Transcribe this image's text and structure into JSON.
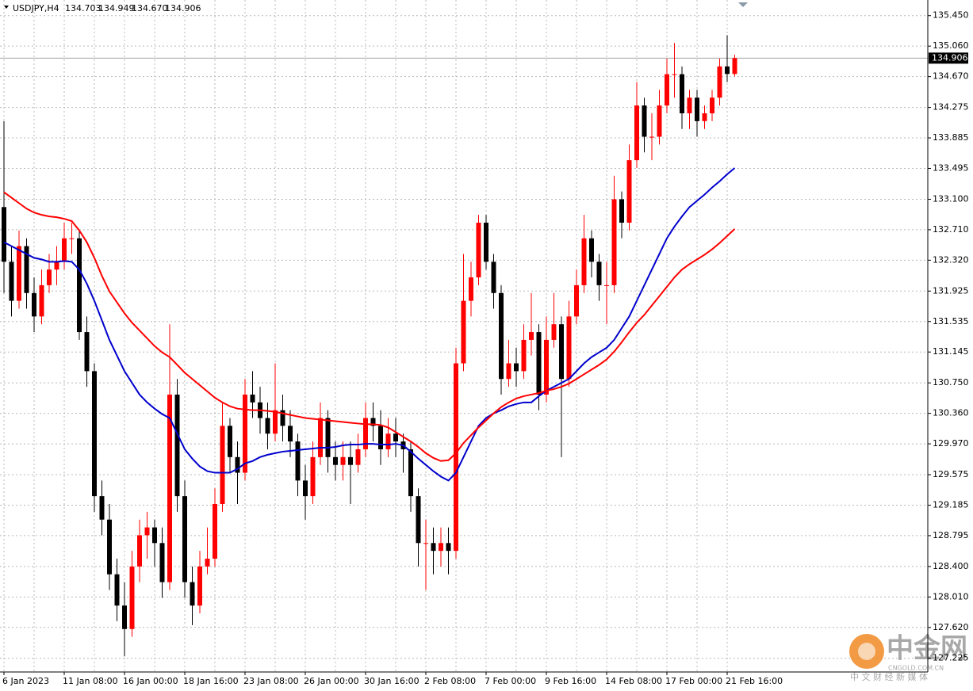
{
  "chart_data": {
    "type": "candlestick",
    "symbol": "USDJPY,H4",
    "quote_labels": [
      "134.703",
      "134.949",
      "134.670",
      "134.906"
    ],
    "categories": [
      "6 Jan 2023",
      null,
      null,
      null,
      null,
      null,
      null,
      null,
      "11 Jan 08:00",
      null,
      null,
      null,
      null,
      null,
      null,
      null,
      "16 Jan 00:00",
      null,
      null,
      null,
      null,
      null,
      null,
      null,
      "18 Jan 16:00",
      null,
      null,
      null,
      null,
      null,
      null,
      null,
      "23 Jan 08:00",
      null,
      null,
      null,
      null,
      null,
      null,
      null,
      "26 Jan 00:00",
      null,
      null,
      null,
      null,
      null,
      null,
      null,
      "30 Jan 16:00",
      null,
      null,
      null,
      null,
      null,
      null,
      null,
      "2 Feb 08:00",
      null,
      null,
      null,
      null,
      null,
      null,
      null,
      "7 Feb 00:00",
      null,
      null,
      null,
      null,
      null,
      null,
      null,
      "9 Feb 16:00",
      null,
      null,
      null,
      null,
      null,
      null,
      null,
      "14 Feb 08:00",
      null,
      null,
      null,
      null,
      null,
      null,
      null,
      "17 Feb 00:00",
      null,
      null,
      null,
      null,
      null,
      null,
      null,
      "21 Feb 16:00",
      null
    ],
    "ohlc": [
      [
        133.0,
        134.1,
        131.9,
        132.3
      ],
      [
        132.3,
        132.5,
        131.6,
        131.8
      ],
      [
        131.8,
        132.7,
        131.7,
        132.5
      ],
      [
        132.5,
        132.6,
        131.7,
        131.9
      ],
      [
        131.9,
        132.1,
        131.4,
        131.6
      ],
      [
        131.6,
        132.2,
        131.5,
        132.0
      ],
      [
        132.0,
        132.4,
        131.9,
        132.2
      ],
      [
        132.2,
        132.5,
        132.0,
        132.3
      ],
      [
        132.3,
        132.8,
        132.2,
        132.6
      ],
      [
        132.6,
        132.8,
        132.4,
        132.6
      ],
      [
        132.6,
        132.7,
        131.3,
        131.4
      ],
      [
        131.4,
        131.6,
        130.7,
        130.9
      ],
      [
        130.9,
        131.0,
        129.1,
        129.3
      ],
      [
        129.3,
        129.5,
        128.8,
        129.0
      ],
      [
        129.0,
        129.2,
        128.1,
        128.3
      ],
      [
        128.3,
        128.5,
        127.7,
        127.9
      ],
      [
        127.9,
        128.2,
        127.25,
        127.6
      ],
      [
        127.6,
        128.6,
        127.5,
        128.4
      ],
      [
        128.4,
        129.0,
        128.2,
        128.8
      ],
      [
        128.8,
        129.1,
        128.5,
        128.9
      ],
      [
        128.9,
        129.0,
        128.4,
        128.7
      ],
      [
        128.7,
        128.9,
        128.0,
        128.2
      ],
      [
        128.2,
        131.5,
        128.1,
        130.6
      ],
      [
        130.6,
        130.8,
        129.1,
        129.3
      ],
      [
        129.3,
        129.5,
        128.0,
        128.2
      ],
      [
        128.2,
        128.4,
        127.65,
        127.9
      ],
      [
        127.9,
        128.6,
        127.8,
        128.4
      ],
      [
        128.4,
        128.9,
        128.3,
        128.5
      ],
      [
        128.5,
        129.4,
        128.4,
        129.2
      ],
      [
        129.2,
        130.5,
        129.1,
        130.2
      ],
      [
        130.2,
        130.3,
        129.6,
        129.8
      ],
      [
        129.8,
        130.0,
        129.2,
        129.6
      ],
      [
        129.6,
        130.8,
        129.5,
        130.6
      ],
      [
        130.6,
        130.9,
        130.3,
        130.5
      ],
      [
        130.5,
        130.7,
        130.1,
        130.3
      ],
      [
        130.3,
        130.5,
        129.9,
        130.1
      ],
      [
        130.1,
        131.0,
        130.0,
        130.4
      ],
      [
        130.4,
        130.6,
        130.0,
        130.2
      ],
      [
        130.2,
        130.4,
        129.8,
        130.0
      ],
      [
        130.0,
        130.1,
        129.3,
        129.5
      ],
      [
        129.5,
        129.7,
        129.0,
        129.3
      ],
      [
        129.3,
        130.0,
        129.2,
        129.8
      ],
      [
        129.8,
        130.5,
        129.7,
        130.3
      ],
      [
        130.3,
        130.4,
        129.6,
        129.8
      ],
      [
        129.8,
        130.0,
        129.5,
        129.7
      ],
      [
        129.7,
        130.0,
        129.5,
        129.8
      ],
      [
        129.8,
        130.0,
        129.2,
        129.7
      ],
      [
        129.7,
        130.1,
        129.6,
        129.9
      ],
      [
        129.9,
        130.5,
        129.8,
        130.3
      ],
      [
        130.3,
        130.5,
        130.0,
        130.2
      ],
      [
        130.2,
        130.4,
        129.7,
        129.9
      ],
      [
        129.9,
        130.3,
        129.8,
        130.1
      ],
      [
        130.1,
        130.3,
        129.8,
        130.0
      ],
      [
        130.0,
        130.1,
        129.6,
        129.9
      ],
      [
        129.9,
        130.0,
        129.1,
        129.3
      ],
      [
        129.3,
        129.4,
        128.4,
        128.7
      ],
      [
        128.7,
        129.0,
        128.1,
        128.7
      ],
      [
        128.7,
        128.9,
        128.3,
        128.6
      ],
      [
        128.6,
        128.9,
        128.4,
        128.7
      ],
      [
        128.7,
        128.9,
        128.3,
        128.6
      ],
      [
        128.6,
        131.2,
        128.5,
        131.0
      ],
      [
        131.0,
        132.4,
        130.9,
        131.8
      ],
      [
        131.8,
        132.3,
        131.6,
        132.1
      ],
      [
        132.1,
        132.9,
        132.0,
        132.8
      ],
      [
        132.8,
        132.9,
        132.2,
        132.3
      ],
      [
        132.3,
        132.4,
        131.7,
        131.9
      ],
      [
        131.9,
        132.0,
        130.6,
        130.8
      ],
      [
        130.8,
        131.3,
        130.7,
        131.0
      ],
      [
        131.0,
        131.2,
        130.7,
        130.9
      ],
      [
        130.9,
        131.5,
        130.8,
        131.3
      ],
      [
        131.3,
        131.9,
        131.1,
        131.4
      ],
      [
        131.4,
        131.5,
        130.4,
        130.6
      ],
      [
        130.6,
        131.6,
        130.5,
        131.3
      ],
      [
        131.3,
        131.9,
        131.2,
        131.5
      ],
      [
        131.5,
        131.6,
        129.8,
        130.8
      ],
      [
        130.8,
        131.8,
        130.7,
        131.6
      ],
      [
        131.6,
        132.2,
        131.5,
        132.0
      ],
      [
        132.0,
        132.9,
        131.9,
        132.6
      ],
      [
        132.6,
        132.7,
        132.1,
        132.3
      ],
      [
        132.3,
        132.4,
        131.8,
        132.0
      ],
      [
        132.0,
        132.3,
        131.5,
        132.0
      ],
      [
        132.0,
        133.4,
        131.9,
        133.1
      ],
      [
        133.1,
        133.2,
        132.6,
        132.8
      ],
      [
        132.8,
        133.8,
        132.7,
        133.6
      ],
      [
        133.6,
        134.6,
        133.5,
        134.3
      ],
      [
        134.3,
        134.4,
        133.7,
        133.9
      ],
      [
        133.9,
        134.2,
        133.6,
        133.9
      ],
      [
        133.9,
        134.5,
        133.8,
        134.3
      ],
      [
        134.3,
        134.9,
        134.2,
        134.7
      ],
      [
        134.7,
        135.1,
        134.4,
        134.7
      ],
      [
        134.7,
        134.8,
        134.0,
        134.2
      ],
      [
        134.2,
        134.5,
        134.0,
        134.4
      ],
      [
        134.4,
        134.5,
        133.9,
        134.1
      ],
      [
        134.1,
        134.3,
        134.0,
        134.2
      ],
      [
        134.2,
        134.5,
        134.1,
        134.4
      ],
      [
        134.4,
        134.9,
        134.3,
        134.8
      ],
      [
        134.8,
        135.2,
        134.6,
        134.703
      ],
      [
        134.703,
        134.949,
        134.67,
        134.906
      ]
    ],
    "up_color": "#ff0000",
    "down_color": "#000000",
    "moving_averages": [
      {
        "color": "#0000cd",
        "values": [
          132.55,
          132.5,
          132.45,
          132.4,
          132.35,
          132.33,
          132.3,
          132.3,
          132.31,
          132.3,
          132.2,
          132.02,
          131.8,
          131.55,
          131.3,
          131.1,
          130.9,
          130.75,
          130.6,
          130.5,
          130.42,
          130.35,
          130.3,
          130.1,
          129.9,
          129.78,
          129.68,
          129.62,
          129.6,
          129.6,
          129.6,
          129.65,
          129.72,
          129.75,
          129.8,
          129.83,
          129.85,
          129.87,
          129.88,
          129.89,
          129.9,
          129.91,
          129.92,
          129.92,
          129.93,
          129.95,
          129.96,
          129.96,
          129.97,
          129.97,
          129.96,
          129.96,
          129.97,
          129.95,
          129.87,
          129.78,
          129.7,
          129.62,
          129.55,
          129.5,
          129.6,
          129.8,
          130.0,
          130.2,
          130.3,
          130.36,
          130.4,
          130.45,
          130.48,
          130.5,
          130.5,
          130.58,
          130.65,
          130.7,
          130.75,
          130.8,
          130.9,
          131.0,
          131.08,
          131.14,
          131.2,
          131.3,
          131.45,
          131.6,
          131.8,
          132.0,
          132.2,
          132.4,
          132.6,
          132.75,
          132.88,
          133.0,
          133.08,
          133.16,
          133.25,
          133.33,
          133.42,
          133.5
        ]
      },
      {
        "color": "#ff0000",
        "values": [
          133.19,
          133.12,
          133.05,
          132.98,
          132.93,
          132.9,
          132.88,
          132.87,
          132.85,
          132.82,
          132.7,
          132.55,
          132.35,
          132.12,
          131.92,
          131.78,
          131.64,
          131.52,
          131.42,
          131.32,
          131.22,
          131.14,
          131.08,
          130.98,
          130.88,
          130.8,
          130.72,
          130.64,
          130.56,
          130.5,
          130.45,
          130.42,
          130.41,
          130.4,
          130.4,
          130.39,
          130.38,
          130.36,
          130.34,
          130.32,
          130.3,
          130.29,
          130.28,
          130.27,
          130.26,
          130.25,
          130.24,
          130.23,
          130.22,
          130.22,
          130.21,
          130.18,
          130.12,
          130.06,
          130.0,
          129.93,
          129.85,
          129.79,
          129.75,
          129.76,
          129.85,
          129.98,
          130.08,
          130.18,
          130.27,
          130.36,
          130.44,
          130.5,
          130.55,
          130.58,
          130.6,
          130.62,
          130.65,
          130.67,
          130.7,
          130.74,
          130.8,
          130.86,
          130.92,
          130.98,
          131.05,
          131.15,
          131.27,
          131.4,
          131.52,
          131.62,
          131.74,
          131.86,
          131.98,
          132.1,
          132.2,
          132.27,
          132.33,
          132.39,
          132.46,
          132.54,
          132.63,
          132.72
        ]
      }
    ],
    "ylim": [
      127.05,
      135.65
    ],
    "yticks": [
      {
        "value": 135.45,
        "label": "135.450"
      },
      {
        "value": 135.06,
        "label": "135.060"
      },
      {
        "value": 134.67,
        "label": "134.670"
      },
      {
        "value": 134.275,
        "label": "134.275"
      },
      {
        "value": 133.885,
        "label": "133.885"
      },
      {
        "value": 133.495,
        "label": "133.495"
      },
      {
        "value": 133.1,
        "label": "133.100"
      },
      {
        "value": 132.71,
        "label": "132.710"
      },
      {
        "value": 132.32,
        "label": "132.320"
      },
      {
        "value": 131.925,
        "label": "131.925"
      },
      {
        "value": 131.535,
        "label": "131.535"
      },
      {
        "value": 131.145,
        "label": "131.145"
      },
      {
        "value": 130.75,
        "label": "130.750"
      },
      {
        "value": 130.36,
        "label": "130.360"
      },
      {
        "value": 129.97,
        "label": "129.970"
      },
      {
        "value": 129.575,
        "label": "129.575"
      },
      {
        "value": 129.185,
        "label": "129.185"
      },
      {
        "value": 128.795,
        "label": "128.795"
      },
      {
        "value": 128.4,
        "label": "128.400"
      },
      {
        "value": 128.01,
        "label": "128.010"
      },
      {
        "value": 127.62,
        "label": "127.620"
      },
      {
        "value": 127.225,
        "label": "127.225"
      }
    ],
    "last_price": {
      "value": 134.906,
      "label": "134.906"
    },
    "grid": true
  },
  "watermark": {
    "title": "中金网",
    "site": "CNGOLD.COM.CN",
    "slogan": "中 文 财 经 新 媒 体"
  }
}
